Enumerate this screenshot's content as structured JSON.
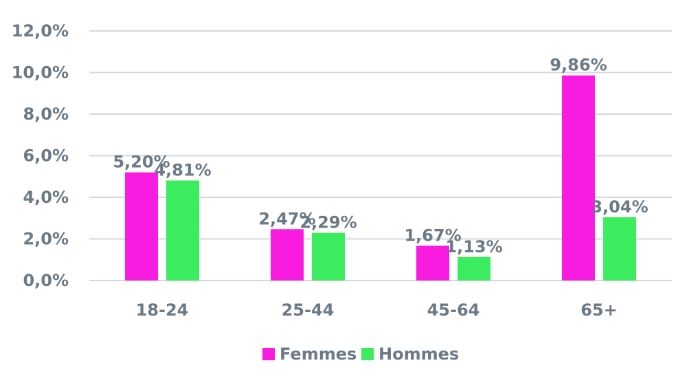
{
  "chart_data": {
    "type": "bar",
    "categories": [
      "18-24",
      "25-44",
      "45-64",
      "65+"
    ],
    "series": [
      {
        "name": "Femmes",
        "color": "#f81ce0",
        "values": [
          5.2,
          2.47,
          1.67,
          9.86
        ],
        "labels": [
          "5,20%",
          "2,47%",
          "1,67%",
          "9,86%"
        ]
      },
      {
        "name": "Hommes",
        "color": "#3bec5e",
        "values": [
          4.81,
          2.29,
          1.13,
          3.04
        ],
        "labels": [
          "4,81%",
          "2,29%",
          "1,13%",
          "3,04%"
        ]
      }
    ],
    "yticks": [
      0,
      2,
      4,
      6,
      8,
      10,
      12
    ],
    "ytick_labels": [
      "0,0%",
      "2,0%",
      "4,0%",
      "6,0%",
      "8,0%",
      "10,0%",
      "12,0%"
    ],
    "ylim": [
      0,
      12
    ],
    "grid": true,
    "legend_position": "bottom-center",
    "title": "",
    "xlabel": "",
    "ylabel": ""
  }
}
